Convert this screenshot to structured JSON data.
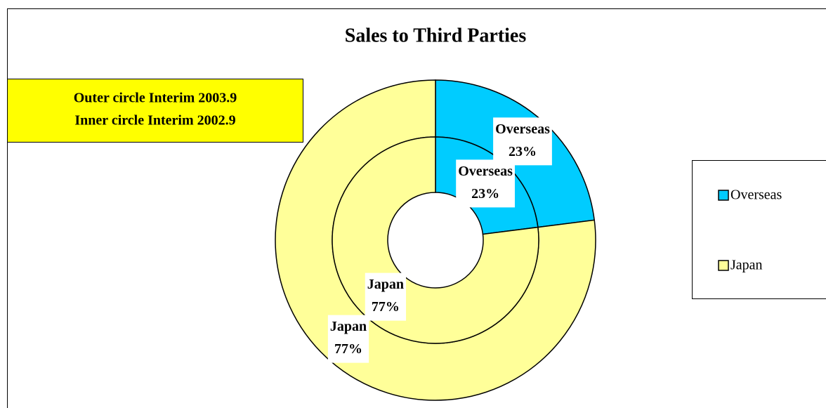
{
  "chart_data": {
    "type": "doughnut",
    "title": "Sales to Third Parties",
    "annotations": [
      "Outer circle Interim 2003.9",
      "Inner circle Interim 2002.9"
    ],
    "categories": [
      "Overseas",
      "Japan"
    ],
    "colors": [
      "#00ccff",
      "#ffff99"
    ],
    "rings": [
      {
        "values": [
          23,
          77
        ],
        "value_labels": [
          "23%",
          "77%"
        ]
      },
      {
        "values": [
          23,
          77
        ],
        "value_labels": [
          "23%",
          "77%"
        ]
      }
    ],
    "legend": "right"
  }
}
